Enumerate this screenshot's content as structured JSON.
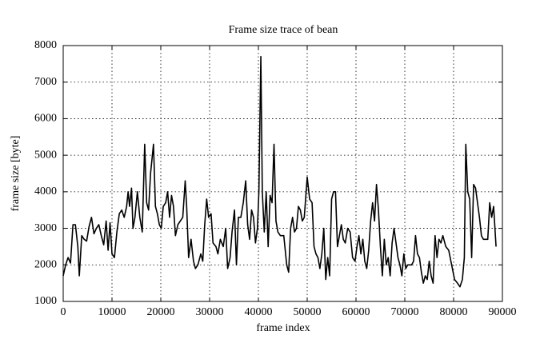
{
  "chart_data": {
    "type": "line",
    "title": "Frame size trace of bean",
    "x_label": "frame index",
    "y_label": "frame size [byte]",
    "x": [
      0,
      500,
      1000,
      1500,
      2000,
      2500,
      3000,
      3300,
      3800,
      4300,
      4800,
      5300,
      5800,
      6300,
      6800,
      7300,
      7800,
      8300,
      8800,
      9200,
      9600,
      10000,
      10500,
      11000,
      11500,
      12000,
      12500,
      13000,
      13300,
      13600,
      14000,
      14300,
      14700,
      15200,
      15700,
      16200,
      16700,
      17100,
      17500,
      17900,
      18500,
      18900,
      19300,
      19700,
      20100,
      20500,
      21000,
      21400,
      21800,
      22200,
      22600,
      23000,
      23500,
      24000,
      24500,
      25000,
      25300,
      25700,
      26200,
      26700,
      27100,
      27600,
      28200,
      28600,
      29000,
      29400,
      29800,
      30300,
      30700,
      31300,
      31700,
      32200,
      32800,
      33300,
      33700,
      34200,
      34600,
      35100,
      35500,
      35900,
      36400,
      36900,
      37400,
      37800,
      38200,
      38600,
      39000,
      39400,
      39800,
      40100,
      40500,
      40800,
      41200,
      41600,
      42000,
      42400,
      42800,
      43200,
      43600,
      44000,
      44500,
      45200,
      45800,
      46200,
      46600,
      47000,
      47400,
      47800,
      48200,
      48600,
      49000,
      49400,
      50000,
      50500,
      51000,
      51400,
      51800,
      52200,
      52600,
      53000,
      53400,
      53800,
      54200,
      54600,
      55000,
      55400,
      55800,
      56200,
      56600,
      57000,
      57400,
      57800,
      58300,
      58800,
      59300,
      59800,
      60200,
      60600,
      61000,
      61400,
      61800,
      62200,
      62600,
      63000,
      63400,
      63800,
      64200,
      64600,
      65000,
      65400,
      65800,
      66200,
      66600,
      67000,
      67400,
      67800,
      68200,
      68600,
      69000,
      69400,
      69800,
      70200,
      70600,
      71000,
      71400,
      71800,
      72200,
      72600,
      73000,
      73400,
      73800,
      74200,
      74600,
      75000,
      75400,
      75800,
      76200,
      76600,
      77000,
      77400,
      77800,
      78400,
      79000,
      79600,
      80200,
      80800,
      81300,
      81800,
      82200,
      82500,
      82900,
      83300,
      83700,
      84100,
      84500,
      84900,
      85300,
      85700,
      86100,
      86600,
      87000,
      87400,
      87800,
      88200,
      88700
    ],
    "values": [
      1700,
      2000,
      2200,
      2050,
      3100,
      3100,
      2500,
      1700,
      2800,
      2700,
      2650,
      3050,
      3300,
      2850,
      3000,
      3100,
      2800,
      2550,
      3200,
      2400,
      3150,
      2300,
      2200,
      2900,
      3400,
      3500,
      3300,
      3600,
      4000,
      3600,
      4100,
      3000,
      3300,
      4000,
      3300,
      2900,
      5300,
      3700,
      3500,
      4500,
      5300,
      3600,
      3400,
      3100,
      3000,
      3600,
      3700,
      4000,
      3300,
      3900,
      3600,
      2800,
      3100,
      3200,
      3300,
      4300,
      3600,
      2200,
      2700,
      2100,
      1900,
      2000,
      2300,
      2100,
      3100,
      3800,
      3300,
      3400,
      2600,
      2500,
      2300,
      2700,
      2500,
      3000,
      1900,
      2200,
      2900,
      3500,
      2000,
      3300,
      3300,
      3700,
      4300,
      3100,
      2700,
      3500,
      3300,
      2600,
      3000,
      4000,
      7700,
      4000,
      2900,
      4000,
      2500,
      3900,
      3700,
      5300,
      3200,
      2900,
      2800,
      2800,
      2000,
      1800,
      3000,
      3300,
      2900,
      3000,
      3600,
      3500,
      3200,
      3300,
      4400,
      3800,
      3700,
      2500,
      2300,
      2200,
      1900,
      2300,
      3000,
      1600,
      2200,
      1700,
      3800,
      4000,
      4000,
      2500,
      2800,
      3100,
      2700,
      2600,
      3000,
      2900,
      2200,
      2100,
      2500,
      2800,
      2300,
      2700,
      2100,
      1900,
      2400,
      3200,
      3700,
      3200,
      4200,
      3500,
      2500,
      1700,
      2700,
      2000,
      2200,
      1700,
      2600,
      3000,
      2600,
      2200,
      2000,
      1700,
      2300,
      1900,
      2000,
      2000,
      2000,
      2100,
      2800,
      2300,
      2200,
      1800,
      1500,
      1700,
      1600,
      2100,
      1700,
      1500,
      2800,
      2200,
      2700,
      2600,
      2800,
      2500,
      2400,
      2000,
      1600,
      1500,
      1400,
      1600,
      2200,
      5300,
      4000,
      3800,
      2200,
      4200,
      4100,
      3700,
      3300,
      2800,
      2700,
      2700,
      2700,
      3700,
      3300,
      3600,
      2500
    ],
    "color": "#000000",
    "xlim": [
      0,
      90000
    ],
    "xticks": [
      0,
      10000,
      20000,
      30000,
      40000,
      50000,
      60000,
      70000,
      80000,
      90000
    ],
    "ylim": [
      1000,
      8000
    ],
    "yticks": [
      1000,
      2000,
      3000,
      4000,
      5000,
      6000,
      7000,
      8000
    ],
    "grid": true
  }
}
